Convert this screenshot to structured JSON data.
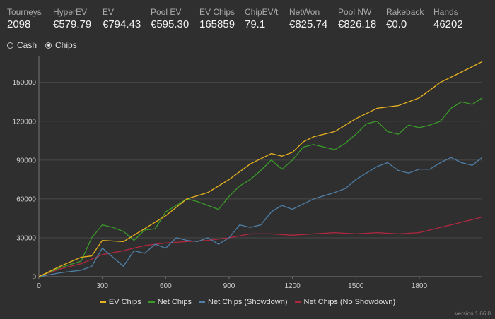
{
  "stats": [
    {
      "label": "Tourneys",
      "value": "2098"
    },
    {
      "label": "HyperEV",
      "value": "€579.79"
    },
    {
      "label": "EV",
      "value": "€794.43"
    },
    {
      "label": "Pool EV",
      "value": "€595.30"
    },
    {
      "label": "EV Chips",
      "value": "165859"
    },
    {
      "label": "ChipEV/t",
      "value": "79.1"
    },
    {
      "label": "NetWon",
      "value": "€825.74"
    },
    {
      "label": "Pool NW",
      "value": "€826.18"
    },
    {
      "label": "Rakeback",
      "value": "€0.0"
    },
    {
      "label": "Hands",
      "value": "46202"
    }
  ],
  "modes": {
    "cash_label": "Cash",
    "chips_label": "Chips",
    "selected": "Chips"
  },
  "version": "Version 1.66.0",
  "chart_data": {
    "type": "line",
    "x_ticks": [
      0,
      300,
      600,
      900,
      1200,
      1500,
      1800
    ],
    "y_ticks": [
      0,
      30000,
      60000,
      90000,
      120000,
      150000
    ],
    "xlim": [
      0,
      2098
    ],
    "ylim": [
      0,
      170000
    ],
    "grid": true,
    "legend_position": "bottom",
    "series": [
      {
        "name": "EV Chips",
        "color": "#e8b31e",
        "x": [
          0,
          100,
          200,
          250,
          300,
          400,
          500,
          600,
          700,
          800,
          900,
          1000,
          1100,
          1150,
          1200,
          1250,
          1300,
          1400,
          1500,
          1600,
          1700,
          1800,
          1900,
          2000,
          2098
        ],
        "y": [
          0,
          8000,
          15000,
          16000,
          28000,
          27000,
          37000,
          47000,
          60000,
          65000,
          75000,
          87000,
          95000,
          93000,
          96000,
          104000,
          108000,
          112000,
          122000,
          130000,
          132000,
          138000,
          150000,
          158000,
          166000
        ]
      },
      {
        "name": "Net Chips",
        "color": "#3a9a2a",
        "x": [
          0,
          100,
          200,
          250,
          300,
          350,
          400,
          450,
          500,
          550,
          600,
          650,
          700,
          750,
          800,
          850,
          900,
          950,
          1000,
          1050,
          1100,
          1150,
          1200,
          1250,
          1300,
          1400,
          1450,
          1500,
          1550,
          1600,
          1650,
          1700,
          1750,
          1800,
          1850,
          1900,
          1950,
          2000,
          2050,
          2098
        ],
        "y": [
          0,
          7000,
          12000,
          30000,
          40000,
          38000,
          35000,
          28000,
          36000,
          37000,
          50000,
          55000,
          60000,
          58000,
          55000,
          52000,
          62000,
          70000,
          75000,
          82000,
          90000,
          83000,
          90000,
          100000,
          102000,
          98000,
          103000,
          110000,
          118000,
          120000,
          112000,
          110000,
          117000,
          115000,
          117000,
          120000,
          130000,
          135000,
          133000,
          138000
        ]
      },
      {
        "name": "Net Chips (Showdown)",
        "color": "#4f7fa8",
        "x": [
          0,
          100,
          200,
          250,
          300,
          350,
          400,
          450,
          500,
          550,
          600,
          650,
          700,
          750,
          800,
          850,
          900,
          950,
          1000,
          1050,
          1100,
          1150,
          1200,
          1300,
          1400,
          1450,
          1500,
          1550,
          1600,
          1650,
          1700,
          1750,
          1800,
          1850,
          1900,
          1950,
          2000,
          2050,
          2098
        ],
        "y": [
          0,
          3000,
          5000,
          8000,
          22000,
          15000,
          8000,
          20000,
          18000,
          25000,
          22000,
          30000,
          28000,
          27000,
          30000,
          25000,
          30000,
          40000,
          38000,
          40000,
          50000,
          55000,
          52000,
          60000,
          65000,
          68000,
          75000,
          80000,
          85000,
          88000,
          82000,
          80000,
          83000,
          83000,
          88000,
          92000,
          88000,
          86000,
          92000
        ]
      },
      {
        "name": "Net Chips (No Showdown)",
        "color": "#b02840",
        "x": [
          0,
          100,
          200,
          300,
          400,
          500,
          600,
          700,
          800,
          900,
          1000,
          1100,
          1200,
          1300,
          1400,
          1500,
          1600,
          1700,
          1800,
          1900,
          2000,
          2098
        ],
        "y": [
          0,
          6000,
          10000,
          17000,
          20000,
          24000,
          26000,
          27000,
          28000,
          30000,
          33000,
          33000,
          32000,
          33000,
          34000,
          33000,
          34000,
          33000,
          34000,
          38000,
          42000,
          46000
        ]
      }
    ]
  }
}
